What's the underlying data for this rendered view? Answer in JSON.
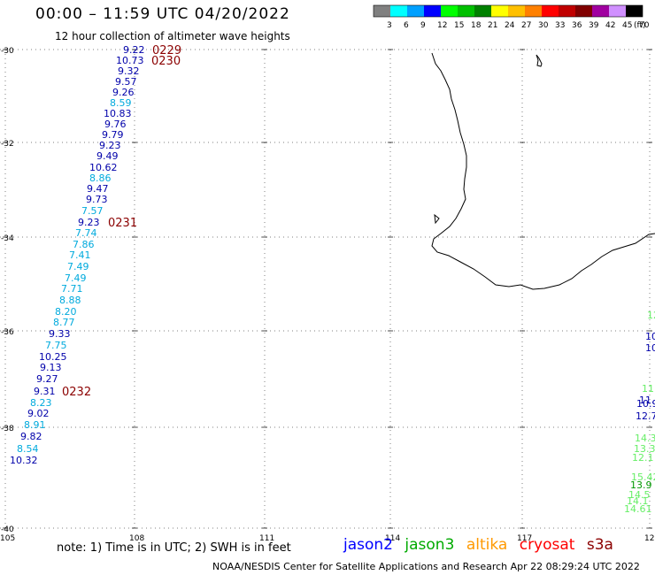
{
  "header": {
    "title": "00:00 – 11:59 UTC 04/20/2022",
    "subtitle": "12 hour collection of altimeter wave heights"
  },
  "color_scale": {
    "values": [
      "3",
      "6",
      "9",
      "12",
      "15",
      "18",
      "21",
      "24",
      "27",
      "30",
      "33",
      "36",
      "39",
      "42",
      "45",
      "70"
    ],
    "unit": "(ft)",
    "colors": [
      "#808080",
      "#00ffff",
      "#00a0ff",
      "#0000ff",
      "#00ff00",
      "#00c000",
      "#008000",
      "#ffff00",
      "#ffc000",
      "#ff8000",
      "#ff0000",
      "#c00000",
      "#800000",
      "#a000a0",
      "#d090ff",
      "#000000"
    ],
    "lead_color": "#808080"
  },
  "axes": {
    "lat_labels": [
      "-30",
      "-32",
      "-34",
      "-36",
      "-38",
      "-40"
    ],
    "lon_labels": [
      "105",
      "108",
      "111",
      "114",
      "117",
      "120"
    ]
  },
  "track_main": {
    "values": [
      "9.22",
      "10.73",
      "9.32",
      "9.57",
      "9.26",
      "8.59",
      "10.83",
      "9.76",
      "9.79",
      "9.23",
      "9.49",
      "10.62",
      "8.86",
      "9.47",
      "9.73",
      "7.57",
      "9.23",
      "7.74",
      "7.86",
      "7.41",
      "7.49",
      "7.49",
      "7.71",
      "8.88",
      "8.20",
      "8.77",
      "9.33",
      "7.75",
      "10.25",
      "9.13",
      "9.27",
      "9.31",
      "8.23",
      "9.02",
      "8.91",
      "9.82",
      "8.54",
      "10.32"
    ],
    "colors": [
      "#0000aa",
      "#0000aa",
      "#0000aa",
      "#0000aa",
      "#0000aa",
      "#00aadd",
      "#0000aa",
      "#0000aa",
      "#0000aa",
      "#0000aa",
      "#0000aa",
      "#0000aa",
      "#00aadd",
      "#0000aa",
      "#0000aa",
      "#00aadd",
      "#0000aa",
      "#00aadd",
      "#00aadd",
      "#00aadd",
      "#00aadd",
      "#00aadd",
      "#00aadd",
      "#00aadd",
      "#00aadd",
      "#00aadd",
      "#0000aa",
      "#00aadd",
      "#0000aa",
      "#0000aa",
      "#0000aa",
      "#0000aa",
      "#00aadd",
      "#0000aa",
      "#00aadd",
      "#0000aa",
      "#00aadd",
      "#0000aa"
    ]
  },
  "pass_times": [
    "0229",
    "0230",
    "0231",
    "0232"
  ],
  "track_east": {
    "values": [
      "12.",
      "10",
      "10",
      "11.",
      "11.",
      "10.9",
      "12.7",
      "14.3",
      "13.3",
      "12.1",
      "15.42",
      "13.9",
      "14.5",
      "14.1",
      "14.61"
    ],
    "colors": [
      "#66ee66",
      "#0000aa",
      "#0000aa",
      "#66ee66",
      "#0000aa",
      "#0000aa",
      "#0000aa",
      "#66ee66",
      "#66ee66",
      "#66ee66",
      "#66ee66",
      "#009900",
      "#66ee66",
      "#66ee66",
      "#66ee66"
    ]
  },
  "satellites": [
    {
      "name": "jason2",
      "color": "#0000ff"
    },
    {
      "name": "jason3",
      "color": "#00aa00"
    },
    {
      "name": "altika",
      "color": "#ff9900"
    },
    {
      "name": "cryosat",
      "color": "#ff0000"
    },
    {
      "name": "s3a",
      "color": "#8b0000"
    }
  ],
  "footer": {
    "note": "note:  1) Time is in UTC;  2) SWH is in feet",
    "credit": "NOAA/NESDIS Center for Satellite Applications and Research     Apr 22 08:29:24 UTC 2022"
  }
}
